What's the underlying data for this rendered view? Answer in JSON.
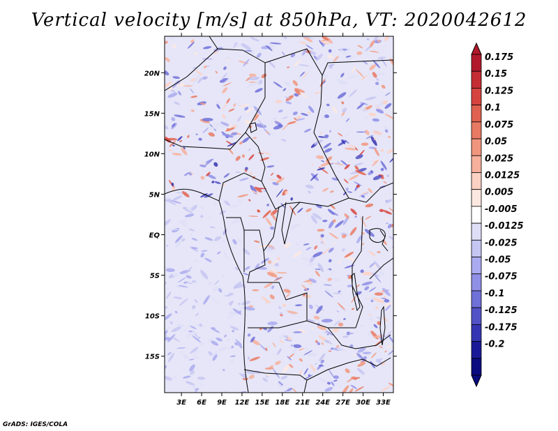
{
  "title": "Vertical velocity [m/s] at 850hPa, VT: 2020042612",
  "footer": "GrADS: IGES/COLA",
  "axes": {
    "lon_ticks": [
      "3E",
      "6E",
      "9E",
      "12E",
      "15E",
      "18E",
      "21E",
      "24E",
      "27E",
      "30E",
      "33E"
    ],
    "lat_ticks": [
      "20N",
      "15N",
      "10N",
      "5N",
      "EQ",
      "5S",
      "10S",
      "15S"
    ],
    "lon_range": [
      0.5,
      34.5
    ],
    "lat_range": [
      -19.5,
      24.5
    ]
  },
  "colorbar": {
    "labels": [
      "0.175",
      "0.15",
      "0.125",
      "0.1",
      "0.075",
      "0.05",
      "0.025",
      "0.0125",
      "0.005",
      "-0.005",
      "-0.0125",
      "-0.025",
      "-0.05",
      "-0.075",
      "-0.1",
      "-0.125",
      "-0.175",
      "-0.2"
    ],
    "colors": [
      "#b2182b",
      "#c42d33",
      "#d6443f",
      "#e0614f",
      "#e87a64",
      "#f0957d",
      "#f6b09c",
      "#fbd1c4",
      "#fde8e0",
      "#ffffff",
      "#dedff7",
      "#c6c6f2",
      "#aaaaf0",
      "#8f8fe6",
      "#7070d9",
      "#5252c7",
      "#3535b3",
      "#1a1a99",
      "#0b0b80"
    ]
  }
}
